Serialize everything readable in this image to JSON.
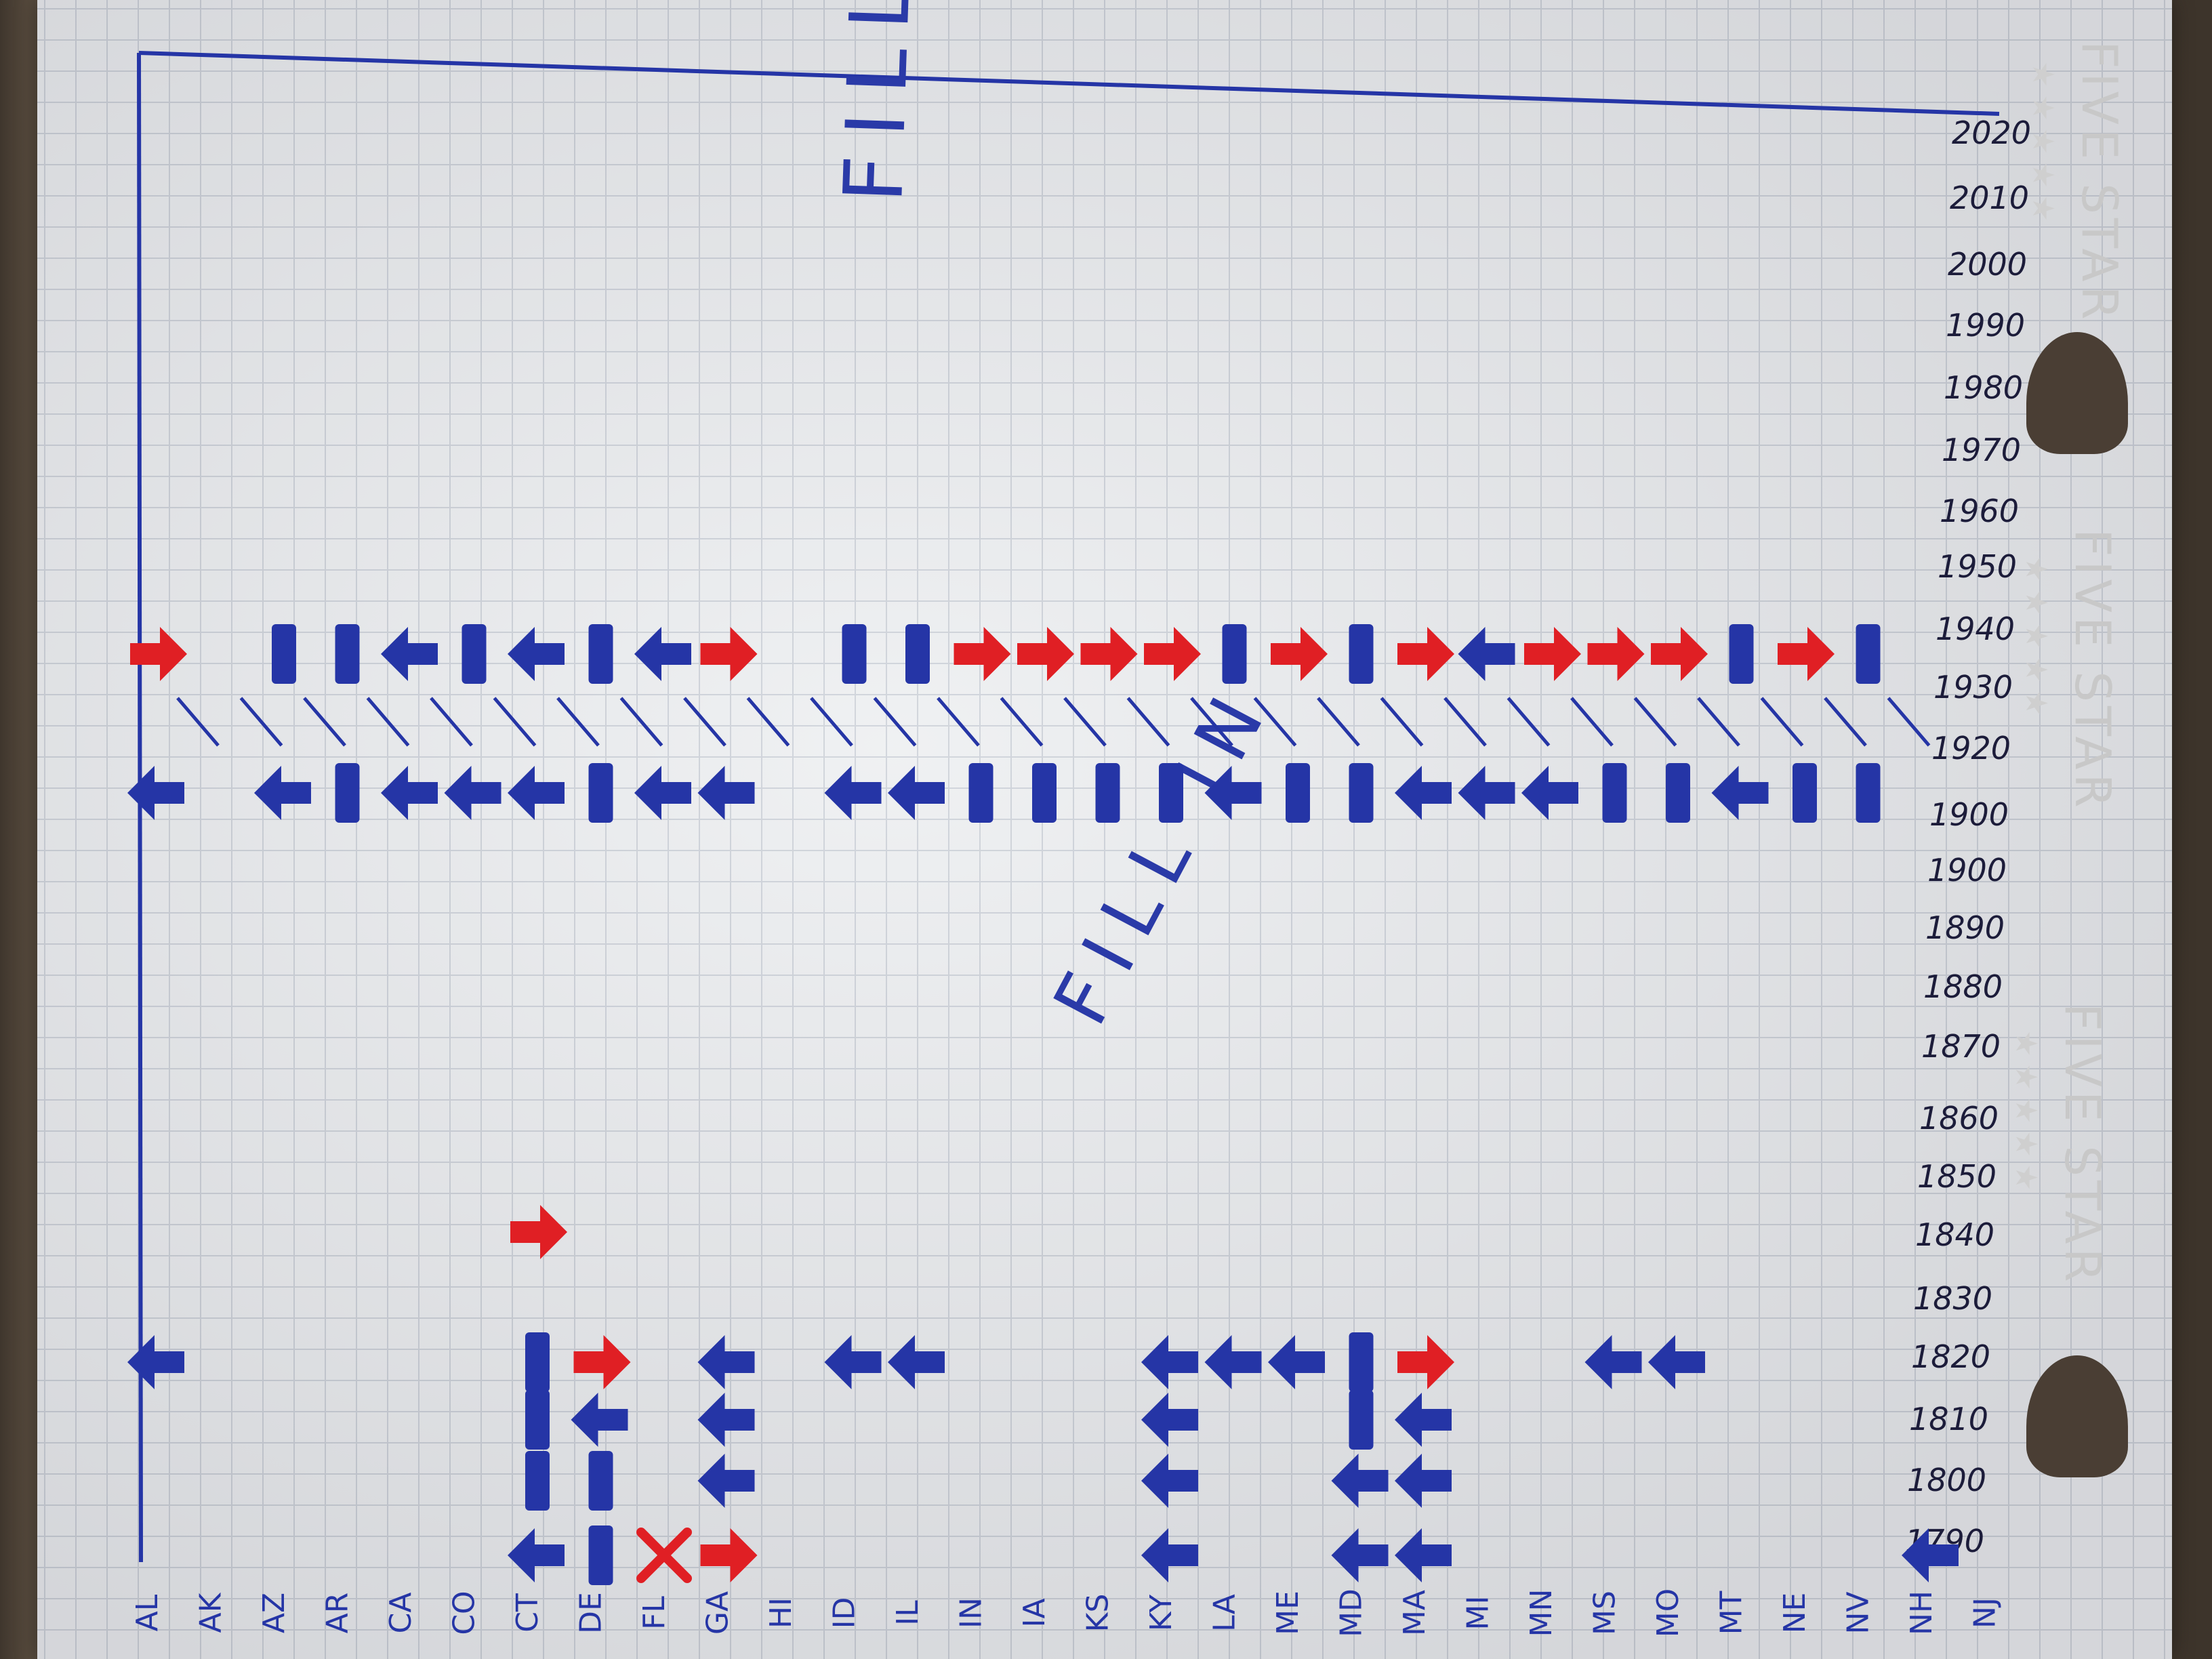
{
  "brand": {
    "name": "FIVE STAR"
  },
  "states": [
    "AL",
    "AK",
    "AZ",
    "AR",
    "CA",
    "CO",
    "CT",
    "DE",
    "FL",
    "GA",
    "HI",
    "ID",
    "IL",
    "IN",
    "IA",
    "KS",
    "KY",
    "LA",
    "ME",
    "MD",
    "MA",
    "MI",
    "MN",
    "MS",
    "MO",
    "MT",
    "NE",
    "NV",
    "NH",
    "NJ"
  ],
  "years": [
    "2020",
    "2010",
    "2000",
    "1990",
    "1980",
    "1970",
    "1960",
    "1950",
    "1940",
    "1930",
    "1920",
    "1900",
    "1900",
    "1890",
    "1880",
    "1870",
    "1860",
    "1850",
    "1840",
    "1830",
    "1820",
    "1810",
    "1800",
    "1790"
  ],
  "annotations": [
    {
      "text": "FILL IN",
      "color": "#2a3aa8"
    },
    {
      "text": "FILL IN",
      "color": "#2a3aa8"
    }
  ],
  "marks": {
    "row_1940": [
      {
        "state": "AL",
        "kind": "arrow-right",
        "color": "red"
      },
      {
        "state": "AZ",
        "kind": "bar",
        "color": "blue"
      },
      {
        "state": "AR",
        "kind": "bar",
        "color": "blue"
      },
      {
        "state": "CA",
        "kind": "arrow-left",
        "color": "blue"
      },
      {
        "state": "CO",
        "kind": "bar",
        "color": "blue"
      },
      {
        "state": "CT",
        "kind": "arrow-left",
        "color": "blue"
      },
      {
        "state": "DE",
        "kind": "bar",
        "color": "blue"
      },
      {
        "state": "FL",
        "kind": "arrow-left",
        "color": "blue"
      },
      {
        "state": "GA",
        "kind": "arrow-right",
        "color": "red"
      },
      {
        "state": "ID",
        "kind": "bar",
        "color": "blue"
      },
      {
        "state": "IL",
        "kind": "bar",
        "color": "blue"
      },
      {
        "state": "IN",
        "kind": "arrow-right",
        "color": "red"
      },
      {
        "state": "IA",
        "kind": "arrow-right",
        "color": "red"
      },
      {
        "state": "KS",
        "kind": "arrow-right",
        "color": "red"
      },
      {
        "state": "KY",
        "kind": "arrow-right",
        "color": "red"
      },
      {
        "state": "LA",
        "kind": "bar",
        "color": "blue"
      },
      {
        "state": "ME",
        "kind": "arrow-right",
        "color": "red"
      },
      {
        "state": "MD",
        "kind": "bar",
        "color": "blue"
      },
      {
        "state": "MA",
        "kind": "arrow-right",
        "color": "red"
      },
      {
        "state": "MI",
        "kind": "arrow-left",
        "color": "blue"
      },
      {
        "state": "MN",
        "kind": "arrow-right",
        "color": "red"
      },
      {
        "state": "MS",
        "kind": "arrow-right",
        "color": "red"
      },
      {
        "state": "MO",
        "kind": "arrow-right",
        "color": "red"
      },
      {
        "state": "MT",
        "kind": "bar",
        "color": "blue"
      },
      {
        "state": "NE",
        "kind": "arrow-right",
        "color": "red"
      },
      {
        "state": "NV",
        "kind": "bar",
        "color": "blue"
      }
    ],
    "row_1900": [
      {
        "state": "AL",
        "kind": "arrow-left",
        "color": "blue"
      },
      {
        "state": "AZ",
        "kind": "arrow-left",
        "color": "blue"
      },
      {
        "state": "AR",
        "kind": "bar",
        "color": "blue"
      },
      {
        "state": "CA",
        "kind": "arrow-left",
        "color": "blue"
      },
      {
        "state": "CO",
        "kind": "arrow-left",
        "color": "blue"
      },
      {
        "state": "CT",
        "kind": "arrow-left",
        "color": "blue"
      },
      {
        "state": "DE",
        "kind": "bar",
        "color": "blue"
      },
      {
        "state": "FL",
        "kind": "arrow-left",
        "color": "blue"
      },
      {
        "state": "GA",
        "kind": "arrow-left",
        "color": "blue"
      },
      {
        "state": "ID",
        "kind": "arrow-left",
        "color": "blue"
      },
      {
        "state": "IL",
        "kind": "arrow-left",
        "color": "blue"
      },
      {
        "state": "IN",
        "kind": "bar",
        "color": "blue"
      },
      {
        "state": "IA",
        "kind": "bar",
        "color": "blue"
      },
      {
        "state": "KS",
        "kind": "bar",
        "color": "blue"
      },
      {
        "state": "KY",
        "kind": "bar",
        "color": "blue"
      },
      {
        "state": "LA",
        "kind": "arrow-left",
        "color": "blue"
      },
      {
        "state": "ME",
        "kind": "bar",
        "color": "blue"
      },
      {
        "state": "MD",
        "kind": "bar",
        "color": "blue"
      },
      {
        "state": "MA",
        "kind": "arrow-left",
        "color": "blue"
      },
      {
        "state": "MI",
        "kind": "arrow-left",
        "color": "blue"
      },
      {
        "state": "MN",
        "kind": "arrow-left",
        "color": "blue"
      },
      {
        "state": "MS",
        "kind": "bar",
        "color": "blue"
      },
      {
        "state": "MO",
        "kind": "bar",
        "color": "blue"
      },
      {
        "state": "MT",
        "kind": "arrow-left",
        "color": "blue"
      },
      {
        "state": "NE",
        "kind": "bar",
        "color": "blue"
      },
      {
        "state": "NV",
        "kind": "bar",
        "color": "blue"
      }
    ],
    "scattered": [
      {
        "state": "CT",
        "year": "1840",
        "kind": "arrow-right",
        "color": "red"
      },
      {
        "state": "AL",
        "year": "1820",
        "kind": "arrow-left",
        "color": "blue"
      },
      {
        "state": "CT",
        "year": "1820",
        "kind": "bar",
        "color": "blue"
      },
      {
        "state": "DE",
        "year": "1820",
        "kind": "arrow-right",
        "color": "red"
      },
      {
        "state": "GA",
        "year": "1820",
        "kind": "arrow-left",
        "color": "blue"
      },
      {
        "state": "ID",
        "year": "1820",
        "kind": "arrow-left",
        "color": "blue"
      },
      {
        "state": "IL",
        "year": "1820",
        "kind": "arrow-left",
        "color": "blue"
      },
      {
        "state": "KY",
        "year": "1820",
        "kind": "arrow-left",
        "color": "blue"
      },
      {
        "state": "LA",
        "year": "1820",
        "kind": "arrow-left",
        "color": "blue"
      },
      {
        "state": "ME",
        "year": "1820",
        "kind": "arrow-left",
        "color": "blue"
      },
      {
        "state": "MD",
        "year": "1820",
        "kind": "bar",
        "color": "blue"
      },
      {
        "state": "MA",
        "year": "1820",
        "kind": "arrow-right",
        "color": "red"
      },
      {
        "state": "MS",
        "year": "1820",
        "kind": "arrow-left",
        "color": "blue"
      },
      {
        "state": "MO",
        "year": "1820",
        "kind": "arrow-left",
        "color": "blue"
      },
      {
        "state": "CT",
        "year": "1810",
        "kind": "bar",
        "color": "blue"
      },
      {
        "state": "DE",
        "year": "1810",
        "kind": "arrow-left",
        "color": "blue"
      },
      {
        "state": "GA",
        "year": "1810",
        "kind": "arrow-left",
        "color": "blue"
      },
      {
        "state": "KY",
        "year": "1810",
        "kind": "arrow-left",
        "color": "blue"
      },
      {
        "state": "MD",
        "year": "1810",
        "kind": "bar",
        "color": "blue"
      },
      {
        "state": "MA",
        "year": "1810",
        "kind": "arrow-left",
        "color": "blue"
      },
      {
        "state": "CT",
        "year": "1800",
        "kind": "bar",
        "color": "blue"
      },
      {
        "state": "DE",
        "year": "1800",
        "kind": "bar",
        "color": "blue"
      },
      {
        "state": "GA",
        "year": "1800",
        "kind": "arrow-left",
        "color": "blue"
      },
      {
        "state": "KY",
        "year": "1800",
        "kind": "arrow-left",
        "color": "blue"
      },
      {
        "state": "MD",
        "year": "1800",
        "kind": "arrow-left",
        "color": "blue"
      },
      {
        "state": "MA",
        "year": "1800",
        "kind": "arrow-left",
        "color": "blue"
      },
      {
        "state": "CT",
        "year": "1790",
        "kind": "arrow-left",
        "color": "blue"
      },
      {
        "state": "DE",
        "year": "1790",
        "kind": "bar",
        "color": "blue"
      },
      {
        "state": "FL",
        "year": "1790",
        "kind": "cross",
        "color": "red"
      },
      {
        "state": "GA",
        "year": "1790",
        "kind": "arrow-right",
        "color": "red"
      },
      {
        "state": "KY",
        "year": "1790",
        "kind": "arrow-left",
        "color": "blue"
      },
      {
        "state": "MD",
        "year": "1790",
        "kind": "arrow-left",
        "color": "blue"
      },
      {
        "state": "MA",
        "year": "1790",
        "kind": "arrow-left",
        "color": "blue"
      },
      {
        "state": "NH",
        "year": "1790",
        "kind": "arrow-left",
        "color": "blue"
      }
    ]
  },
  "colors": {
    "ink_blue": "#2535a6",
    "ink_red": "#e01f24",
    "paper": "#eceef0",
    "grid": "#c9ced6"
  }
}
